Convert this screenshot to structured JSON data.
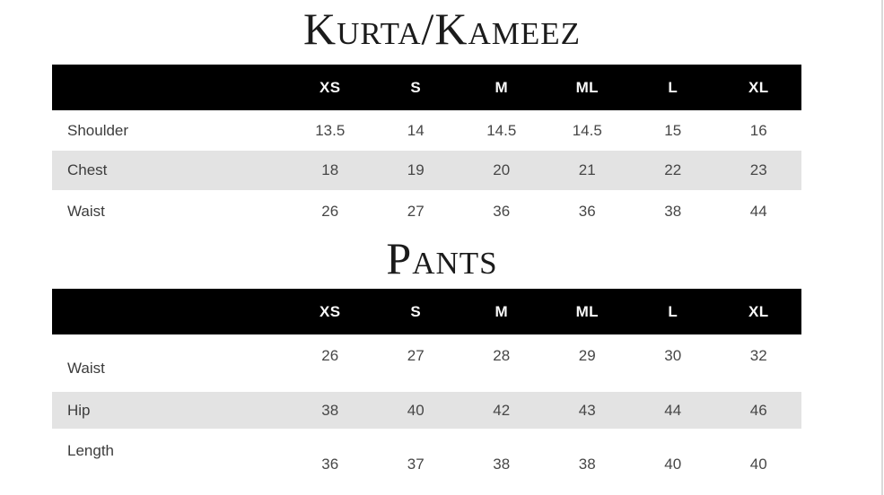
{
  "colors": {
    "header_bg": "#000000",
    "header_text": "#fafafa",
    "stripe_bg": "#e3e3e3",
    "body_text": "#474747",
    "title_text": "#1b1b1b",
    "page_edge_line": "#d9d9d9"
  },
  "sections": [
    {
      "title": "Kurta/Kameez",
      "columns": [
        "XS",
        "S",
        "M",
        "ML",
        "L",
        "XL"
      ],
      "rows": [
        {
          "label": "Shoulder",
          "values": [
            "13.5",
            "14",
            "14.5",
            "14.5",
            "15",
            "16"
          ]
        },
        {
          "label": "Chest",
          "values": [
            "18",
            "19",
            "20",
            "21",
            "22",
            "23"
          ]
        },
        {
          "label": "Waist",
          "values": [
            "26",
            "27",
            "36",
            "36",
            "38",
            "44"
          ]
        }
      ]
    },
    {
      "title": "Pants",
      "columns": [
        "XS",
        "S",
        "M",
        "ML",
        "L",
        "XL"
      ],
      "rows": [
        {
          "label": "Waist",
          "values": [
            "26",
            "27",
            "28",
            "29",
            "30",
            "32"
          ]
        },
        {
          "label": "Hip",
          "values": [
            "38",
            "40",
            "42",
            "43",
            "44",
            "46"
          ]
        },
        {
          "label": "Length",
          "values": [
            "36",
            "37",
            "38",
            "38",
            "40",
            "40"
          ]
        }
      ]
    }
  ]
}
